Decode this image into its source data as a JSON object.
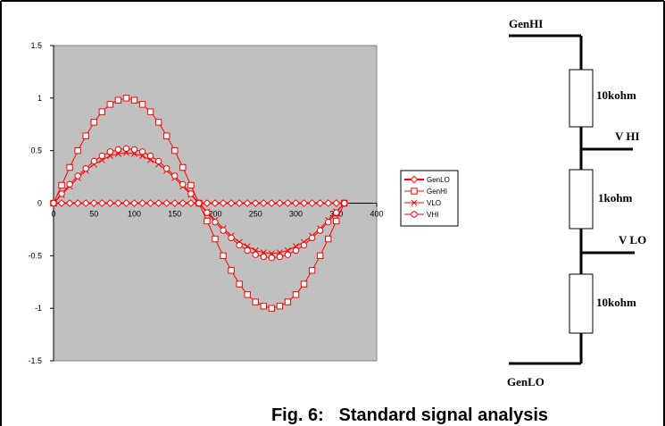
{
  "chart_data": {
    "type": "line",
    "title": "",
    "xlabel": "",
    "ylabel": "",
    "xlim": [
      0,
      400
    ],
    "ylim": [
      -1.5,
      1.5
    ],
    "x_ticks": [
      "0",
      "50",
      "100",
      "150",
      "200",
      "250",
      "300",
      "350",
      "400"
    ],
    "y_ticks": [
      "1.5",
      "1",
      "0.5",
      "0",
      "-0.5",
      "-1",
      "-1.5"
    ],
    "x": [
      0,
      10,
      20,
      30,
      40,
      50,
      60,
      70,
      80,
      90,
      100,
      110,
      120,
      130,
      140,
      150,
      160,
      170,
      180,
      190,
      200,
      210,
      220,
      230,
      240,
      250,
      260,
      270,
      280,
      290,
      300,
      310,
      320,
      330,
      340,
      350,
      360
    ],
    "series": [
      {
        "name": "GenLO",
        "marker": "diamond",
        "values": [
          0,
          0,
          0,
          0,
          0,
          0,
          0,
          0,
          0,
          0,
          0,
          0,
          0,
          0,
          0,
          0,
          0,
          0,
          0,
          0,
          0,
          0,
          0,
          0,
          0,
          0,
          0,
          0,
          0,
          0,
          0,
          0,
          0,
          0,
          0,
          0,
          0
        ]
      },
      {
        "name": "GenHI",
        "marker": "square",
        "values": [
          0,
          0.17,
          0.34,
          0.5,
          0.64,
          0.77,
          0.87,
          0.94,
          0.98,
          1,
          0.98,
          0.94,
          0.87,
          0.77,
          0.64,
          0.5,
          0.34,
          0.17,
          0,
          -0.17,
          -0.34,
          -0.5,
          -0.64,
          -0.77,
          -0.87,
          -0.94,
          -0.98,
          -1,
          -0.98,
          -0.94,
          -0.87,
          -0.77,
          -0.64,
          -0.5,
          -0.34,
          -0.17,
          0
        ]
      },
      {
        "name": "VLO",
        "marker": "x",
        "values": [
          0,
          0.08,
          0.16,
          0.24,
          0.31,
          0.37,
          0.41,
          0.45,
          0.47,
          0.48,
          0.47,
          0.45,
          0.41,
          0.37,
          0.31,
          0.24,
          0.16,
          0.08,
          0,
          -0.08,
          -0.16,
          -0.24,
          -0.31,
          -0.37,
          -0.41,
          -0.45,
          -0.47,
          -0.48,
          -0.47,
          -0.45,
          -0.41,
          -0.37,
          -0.31,
          -0.24,
          -0.16,
          -0.08,
          0
        ]
      },
      {
        "name": "VHI",
        "marker": "circle",
        "values": [
          0,
          0.09,
          0.18,
          0.26,
          0.33,
          0.4,
          0.45,
          0.49,
          0.51,
          0.52,
          0.51,
          0.49,
          0.45,
          0.4,
          0.33,
          0.26,
          0.18,
          0.09,
          0,
          -0.09,
          -0.18,
          -0.26,
          -0.33,
          -0.4,
          -0.45,
          -0.49,
          -0.51,
          -0.52,
          -0.51,
          -0.49,
          -0.45,
          -0.4,
          -0.33,
          -0.26,
          -0.18,
          -0.09,
          0
        ]
      }
    ],
    "series_color": "#ff0000",
    "plot_background": "#c0c0c0",
    "grid": false,
    "legend_position": "right"
  },
  "circuit": {
    "top_label": "GenHI",
    "bottom_label": "GenLO",
    "resistors": [
      "10kohm",
      "1kohm",
      "10kohm"
    ],
    "taps": [
      "V HI",
      "V LO"
    ]
  },
  "caption": "Fig. 6:   Standard signal analysis"
}
